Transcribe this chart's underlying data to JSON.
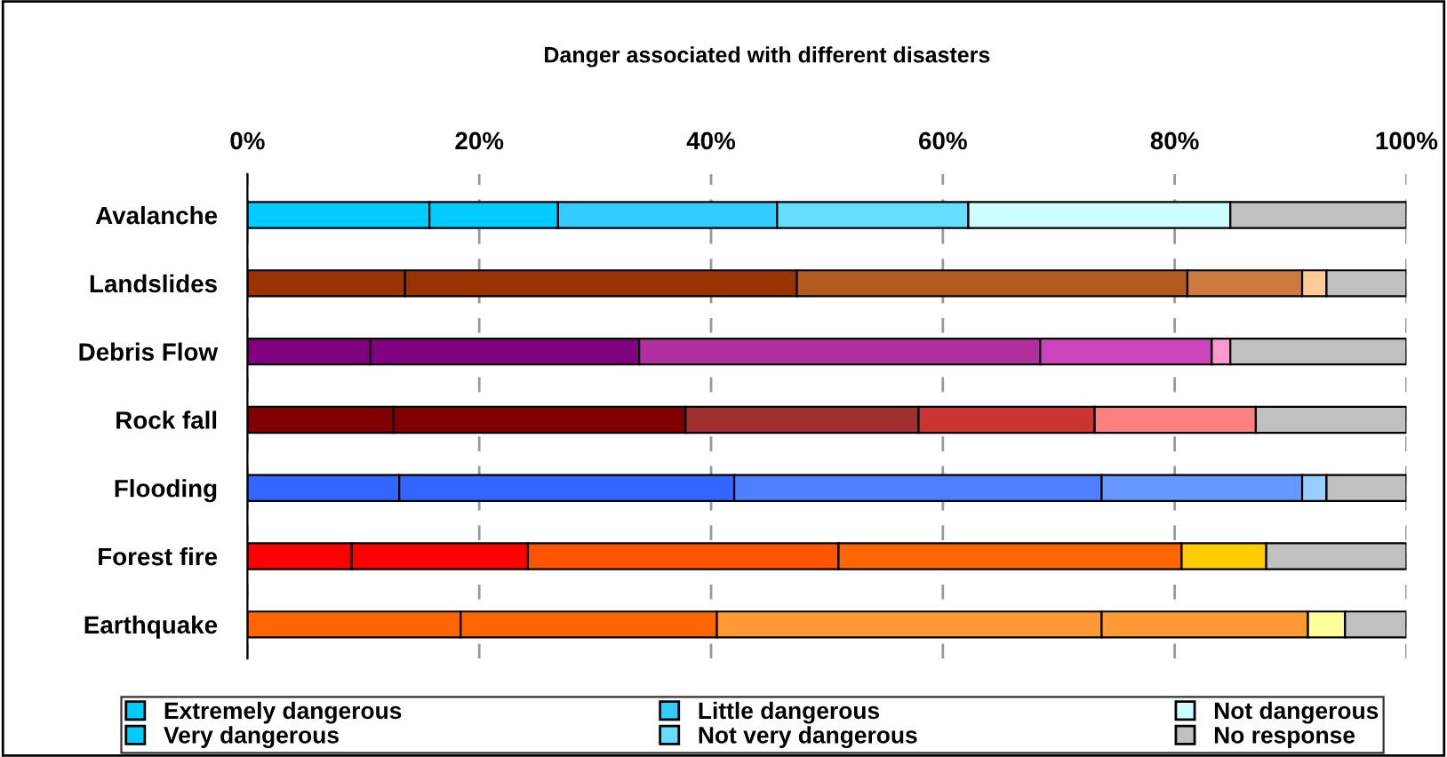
{
  "chart_data": {
    "type": "bar",
    "orientation": "horizontal",
    "stacked": true,
    "title": "Danger associated with different disasters",
    "categories": [
      "Avalanche",
      "Landslides",
      "Debris Flow",
      "Rock fall",
      "Flooding",
      "Forest fire",
      "Earthquake"
    ],
    "series": [
      {
        "name": "Extremely dangerous",
        "colors": [
          "#00ccff",
          "#993300",
          "#800080",
          "#800000",
          "#3366ff",
          "#ff0000",
          "#ff6600"
        ],
        "values": [
          15.7,
          13.6,
          10.6,
          12.6,
          13.1,
          9.0,
          18.4
        ]
      },
      {
        "name": "Very dangerous",
        "colors": [
          "#00ccff",
          "#993300",
          "#800080",
          "#800000",
          "#3366ff",
          "#ff0000",
          "#ff6600"
        ],
        "values": [
          11.1,
          33.8,
          23.2,
          25.2,
          28.9,
          15.2,
          22.1
        ]
      },
      {
        "name": "Little dangerous",
        "colors": [
          "#33ccff",
          "#b35a1f",
          "#b030a0",
          "#a03030",
          "#4d7fff",
          "#ff5500",
          "#ff9933"
        ],
        "values": [
          18.9,
          33.7,
          34.6,
          20.1,
          31.7,
          26.8,
          33.2
        ]
      },
      {
        "name": "Not very dangerous",
        "colors": [
          "#66ddff",
          "#cc7a40",
          "#cc44bb",
          "#cc3333",
          "#6699ff",
          "#ff6600",
          "#ff9933"
        ],
        "values": [
          16.5,
          9.9,
          14.8,
          15.2,
          17.3,
          29.6,
          17.8
        ]
      },
      {
        "name": "Not dangerous",
        "colors": [
          "#ccffff",
          "#ffcc99",
          "#ff99cc",
          "#ff8080",
          "#99ccff",
          "#ffcc00",
          "#ffff99"
        ],
        "values": [
          22.6,
          2.1,
          1.6,
          13.9,
          2.1,
          7.3,
          3.2
        ]
      },
      {
        "name": "No response",
        "colors": [
          "#c0c0c0",
          "#c0c0c0",
          "#c0c0c0",
          "#c0c0c0",
          "#c0c0c0",
          "#c0c0c0",
          "#c0c0c0"
        ],
        "values": [
          15.2,
          6.9,
          15.2,
          13.0,
          6.9,
          12.1,
          5.3
        ]
      }
    ],
    "xlim": [
      0,
      100
    ],
    "xticks": [
      {
        "value": 0,
        "label": "0%"
      },
      {
        "value": 20,
        "label": "20%"
      },
      {
        "value": 40,
        "label": "40%"
      },
      {
        "value": 60,
        "label": "60%"
      },
      {
        "value": 80,
        "label": "80%"
      },
      {
        "value": 100,
        "label": "100%"
      }
    ],
    "grid": "x",
    "legend": "bottom"
  }
}
